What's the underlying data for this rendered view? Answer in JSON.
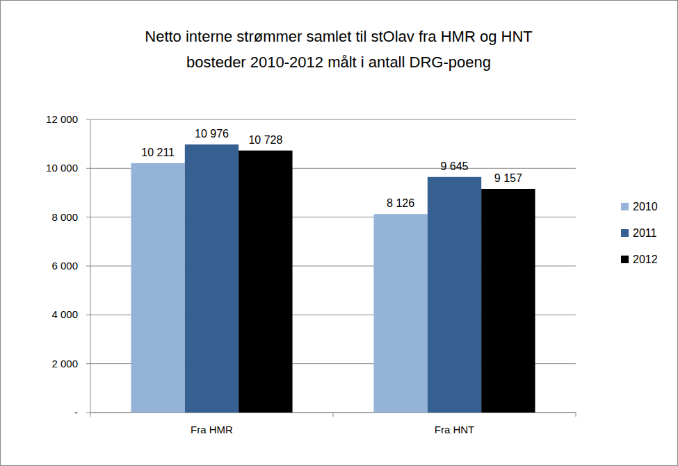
{
  "chart_data": {
    "type": "bar",
    "title": "Netto interne strømmer  samlet til stOlav fra HMR og HNT\nbosteder 2010-2012 målt i antall DRG-poeng",
    "categories": [
      "Fra HMR",
      "Fra HNT"
    ],
    "series": [
      {
        "name": "2010",
        "color": "#95b3d7",
        "values": [
          10211,
          8126
        ],
        "value_labels": [
          "10 211",
          "8 126"
        ]
      },
      {
        "name": "2011",
        "color": "#376092",
        "values": [
          10976,
          9645
        ],
        "value_labels": [
          "10 976",
          "9 645"
        ]
      },
      {
        "name": "2012",
        "color": "#000000",
        "values": [
          10728,
          9157
        ],
        "value_labels": [
          "10 728",
          "9 157"
        ]
      }
    ],
    "ylim": [
      0,
      12000
    ],
    "yticks": [
      {
        "value": 0,
        "label": "-"
      },
      {
        "value": 2000,
        "label": "2 000"
      },
      {
        "value": 4000,
        "label": "4 000"
      },
      {
        "value": 6000,
        "label": "6 000"
      },
      {
        "value": 8000,
        "label": "8 000"
      },
      {
        "value": 10000,
        "label": "10 000"
      },
      {
        "value": 12000,
        "label": "12 000"
      }
    ],
    "grid": true,
    "legend": "right",
    "data_labels": true
  }
}
